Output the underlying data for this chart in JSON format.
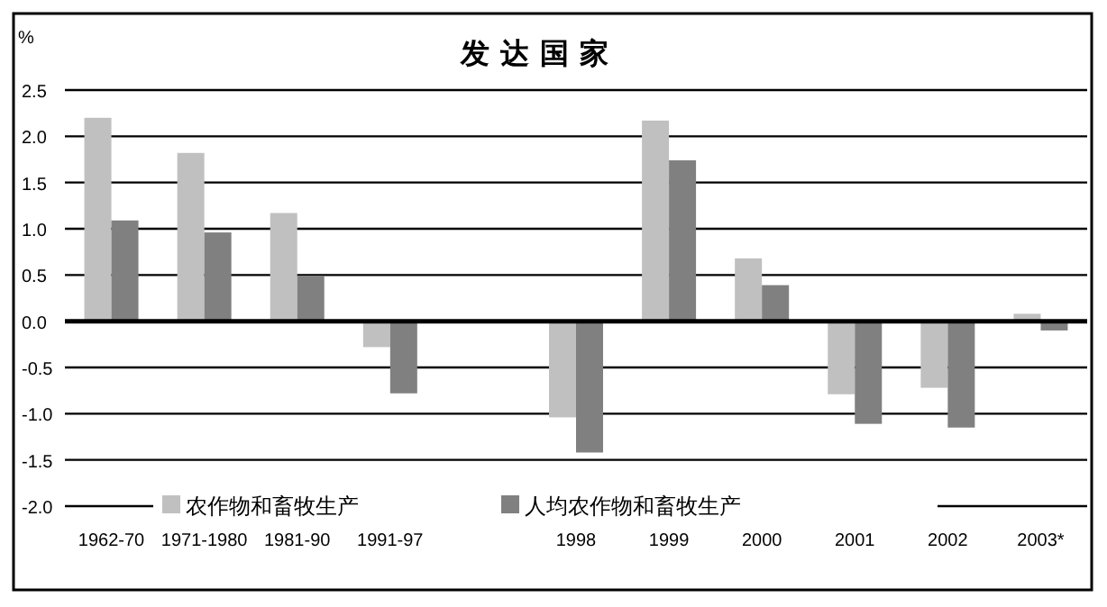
{
  "chart_data": {
    "type": "bar",
    "title": "发达国家",
    "ylabel": "%",
    "categories": [
      "1962-70",
      "1971-1980",
      "1981-90",
      "1991-97",
      null,
      "1998",
      "1999",
      "2000",
      "2001",
      "2002",
      "2003*"
    ],
    "series": [
      {
        "name": "农作物和畜牧生产",
        "color": "#c0c0c0",
        "values": [
          2.2,
          1.82,
          1.17,
          -0.28,
          null,
          -1.04,
          2.17,
          0.68,
          -0.79,
          -0.72,
          0.08
        ]
      },
      {
        "name": "人均农作物和畜牧生产",
        "color": "#808080",
        "values": [
          1.09,
          0.96,
          0.49,
          -0.78,
          null,
          -1.42,
          1.74,
          0.39,
          -1.11,
          -1.15,
          -0.1
        ]
      }
    ],
    "ylim": [
      -2.0,
      2.5
    ],
    "yticks": [
      {
        "value": 2.5,
        "label": "2.5"
      },
      {
        "value": 2,
        "label": "2.0"
      },
      {
        "value": 1.5,
        "label": "1.5"
      },
      {
        "value": 1,
        "label": "1.0"
      },
      {
        "value": 0.5,
        "label": "0.5"
      },
      {
        "value": 0,
        "label": "0.0"
      },
      {
        "value": -0.5,
        "label": "-0.5"
      },
      {
        "value": -1,
        "label": "-1.0"
      },
      {
        "value": -1.5,
        "label": "-1.5"
      },
      {
        "value": -2,
        "label": "-2.0"
      }
    ],
    "grid": "y",
    "legend": "bottom"
  }
}
